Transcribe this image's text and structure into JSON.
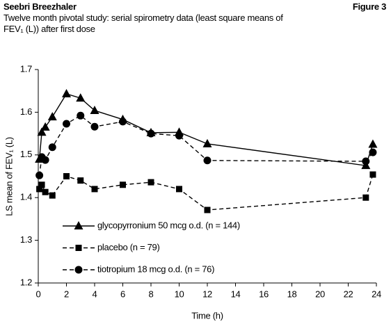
{
  "chart_data": {
    "type": "line",
    "title": "Seebri Breezhaler",
    "figure_label": "Figure 3",
    "subtitle": "Twelve month pivotal study: serial spirometry data (least square means of FEV₁ (L)) after first dose",
    "x_label": "Time (h)",
    "y_label": "LS mean of FEV₁ (L)",
    "x": [
      0.08,
      0.25,
      0.5,
      1,
      2,
      3,
      4,
      6,
      8,
      10,
      12,
      23.25,
      23.75
    ],
    "series": [
      {
        "name": "glycopyrronium 50 mcg o.d. (n = 144)",
        "color": "#000000",
        "marker": "triangle",
        "line_style": "solid",
        "values": [
          1.49,
          1.553,
          1.565,
          1.589,
          1.643,
          1.633,
          1.604,
          1.583,
          1.552,
          1.553,
          1.526,
          1.475,
          1.525
        ]
      },
      {
        "name": "placebo (n = 79)",
        "color": "#000000",
        "marker": "square",
        "line_style": "dashed",
        "values": [
          1.42,
          1.43,
          1.413,
          1.405,
          1.45,
          1.44,
          1.42,
          1.43,
          1.436,
          1.42,
          1.371,
          1.4,
          1.454
        ]
      },
      {
        "name": "tiotropium 18 mcg o.d. (n = 76)",
        "color": "#000000",
        "marker": "circle",
        "line_style": "dashed",
        "values": [
          1.452,
          1.495,
          1.488,
          1.518,
          1.573,
          1.592,
          1.566,
          1.578,
          1.55,
          1.545,
          1.487,
          1.485,
          1.506
        ]
      }
    ],
    "xlim": [
      0,
      24
    ],
    "xticks": [
      0,
      2,
      4,
      6,
      8,
      10,
      12,
      14,
      16,
      18,
      20,
      22,
      24
    ],
    "ylim": [
      1.2,
      1.7
    ],
    "yticks": [
      1.2,
      1.3,
      1.4,
      1.5,
      1.6,
      1.7
    ]
  }
}
